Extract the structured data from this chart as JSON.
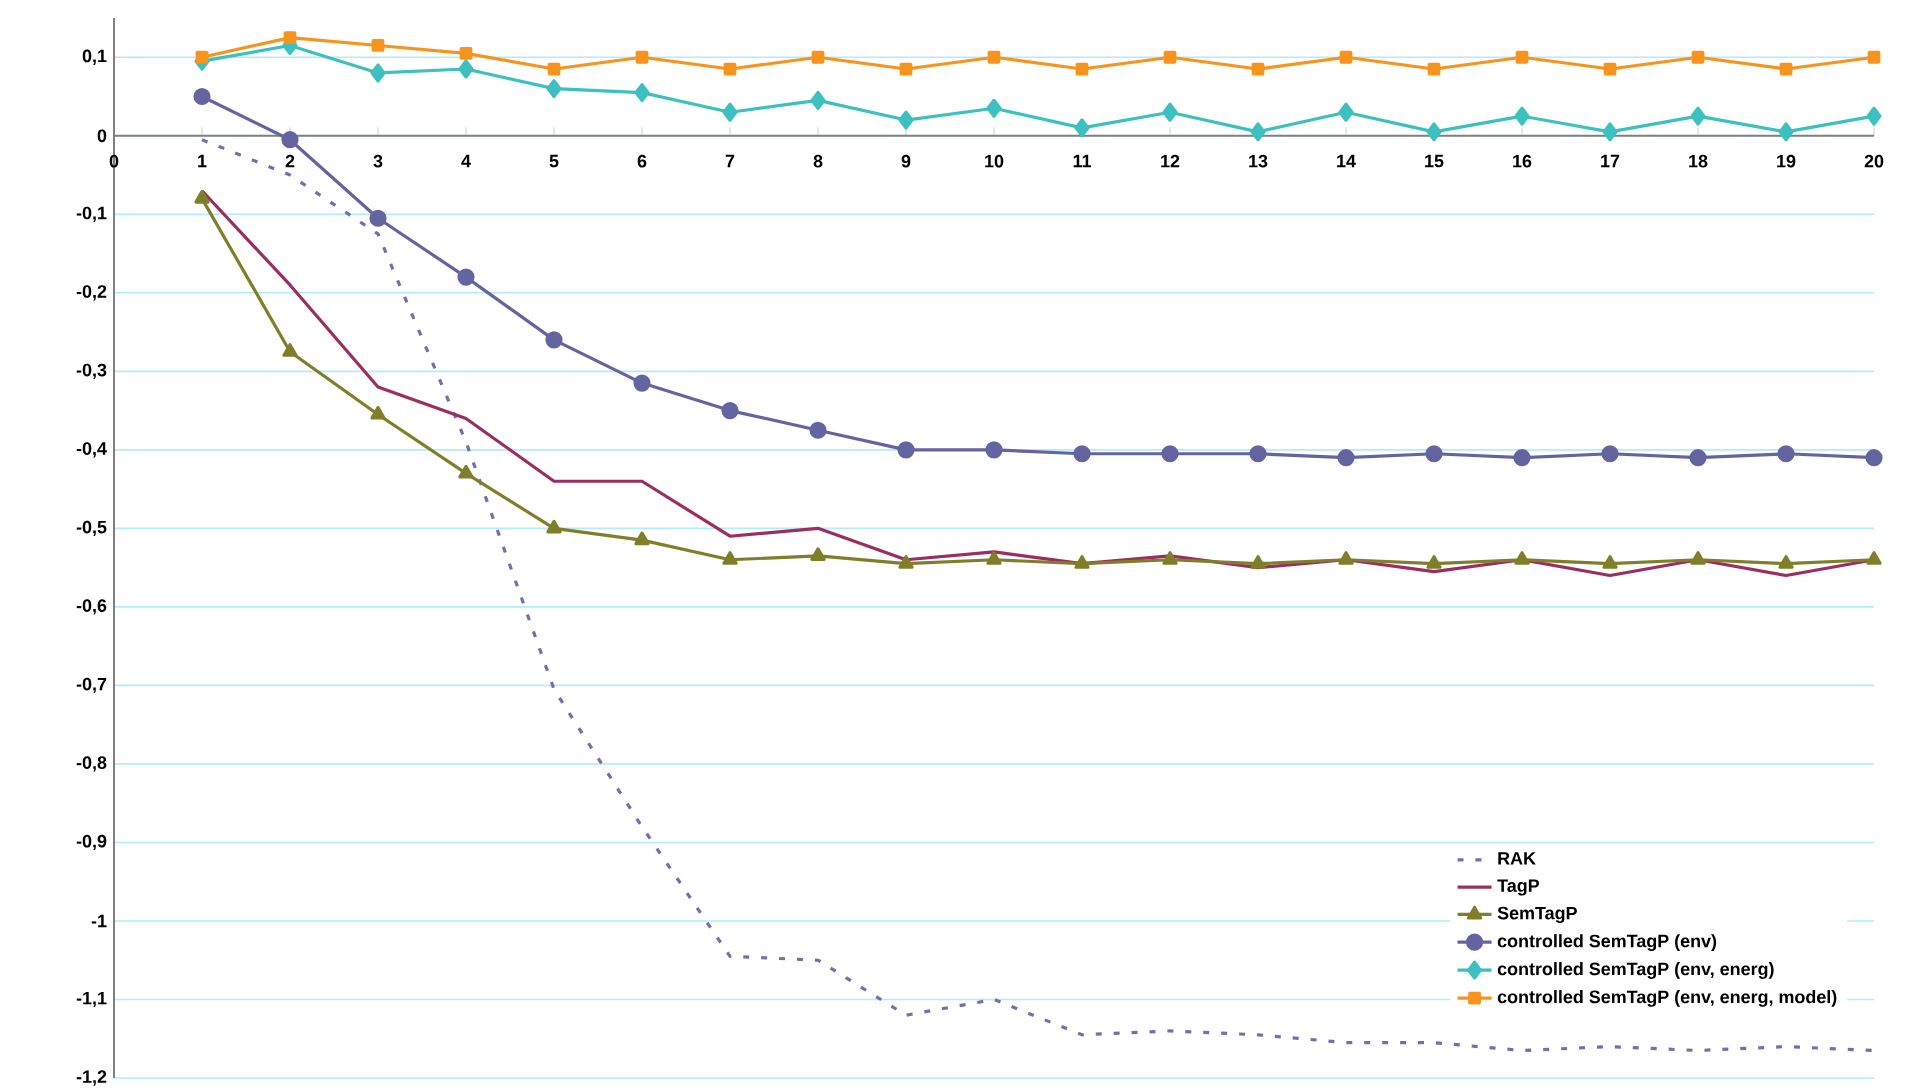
{
  "chart_data": {
    "type": "line",
    "x": [
      1,
      2,
      3,
      4,
      5,
      6,
      7,
      8,
      9,
      10,
      11,
      12,
      13,
      14,
      15,
      16,
      17,
      18,
      19,
      20
    ],
    "xlim": [
      0,
      20
    ],
    "xticks": [
      0,
      1,
      2,
      3,
      4,
      5,
      6,
      7,
      8,
      9,
      10,
      11,
      12,
      13,
      14,
      15,
      16,
      17,
      18,
      19,
      20
    ],
    "ylim": [
      -1.2,
      0.15
    ],
    "yticks": [
      {
        "value": -1.2,
        "label": "-1,2"
      },
      {
        "value": -1.1,
        "label": "-1,1"
      },
      {
        "value": -1,
        "label": "-1"
      },
      {
        "value": -0.9,
        "label": "-0,9"
      },
      {
        "value": -0.8,
        "label": "-0,8"
      },
      {
        "value": -0.7,
        "label": "-0,7"
      },
      {
        "value": -0.6,
        "label": "-0,6"
      },
      {
        "value": -0.5,
        "label": "-0,5"
      },
      {
        "value": -0.4,
        "label": "-0,4"
      },
      {
        "value": -0.3,
        "label": "-0,3"
      },
      {
        "value": -0.2,
        "label": "-0,2"
      },
      {
        "value": -0.1,
        "label": "-0,1"
      },
      {
        "value": 0,
        "label": "0"
      },
      {
        "value": 0.1,
        "label": "0,1"
      }
    ],
    "grid": "y",
    "legend": "bottom right",
    "series": [
      {
        "name": "RAK",
        "color": "#7070b0",
        "marker": "none",
        "line_style": "dashed",
        "values": [
          -0.005,
          -0.05,
          -0.125,
          -0.39,
          -0.705,
          -0.88,
          -1.045,
          -1.05,
          -1.12,
          -1.1,
          -1.145,
          -1.14,
          -1.145,
          -1.155,
          -1.155,
          -1.165,
          -1.16,
          -1.165,
          -1.16,
          -1.165
        ]
      },
      {
        "name": "TagP",
        "color": "#9b2d5f",
        "marker": "none",
        "line_style": "solid",
        "values": [
          -0.07,
          -0.19,
          -0.32,
          -0.36,
          -0.44,
          -0.44,
          -0.51,
          -0.5,
          -0.54,
          -0.53,
          -0.545,
          -0.535,
          -0.55,
          -0.54,
          -0.555,
          -0.54,
          -0.56,
          -0.54,
          -0.56,
          -0.54
        ]
      },
      {
        "name": "SemTagP",
        "color": "#7f7f2a",
        "marker": "triangle",
        "line_style": "solid",
        "values": [
          -0.08,
          -0.275,
          -0.355,
          -0.43,
          -0.5,
          -0.515,
          -0.54,
          -0.535,
          -0.545,
          -0.54,
          -0.545,
          -0.54,
          -0.545,
          -0.54,
          -0.545,
          -0.54,
          -0.545,
          -0.54,
          -0.545,
          -0.54
        ]
      },
      {
        "name": "controlled SemTagP (env)",
        "color": "#6464a0",
        "marker": "circle",
        "line_style": "solid",
        "values": [
          0.05,
          -0.005,
          -0.105,
          -0.18,
          -0.26,
          -0.315,
          -0.35,
          -0.375,
          -0.4,
          -0.4,
          -0.405,
          -0.405,
          -0.405,
          -0.41,
          -0.405,
          -0.41,
          -0.405,
          -0.41,
          -0.405,
          -0.41
        ]
      },
      {
        "name": "controlled SemTagP (env, energ)",
        "color": "#3cc0c0",
        "marker": "diamond",
        "line_style": "solid",
        "values": [
          0.095,
          0.115,
          0.08,
          0.085,
          0.06,
          0.055,
          0.03,
          0.045,
          0.02,
          0.035,
          0.01,
          0.03,
          0.005,
          0.03,
          0.005,
          0.025,
          0.005,
          0.025,
          0.005,
          0.025
        ]
      },
      {
        "name": "controlled SemTagP (env, energ, model)",
        "color": "#f7941d",
        "marker": "square",
        "line_style": "solid",
        "values": [
          0.1,
          0.125,
          0.115,
          0.105,
          0.085,
          0.1,
          0.085,
          0.1,
          0.085,
          0.1,
          0.085,
          0.1,
          0.085,
          0.1,
          0.085,
          0.1,
          0.085,
          0.1,
          0.085,
          0.1
        ]
      }
    ]
  }
}
